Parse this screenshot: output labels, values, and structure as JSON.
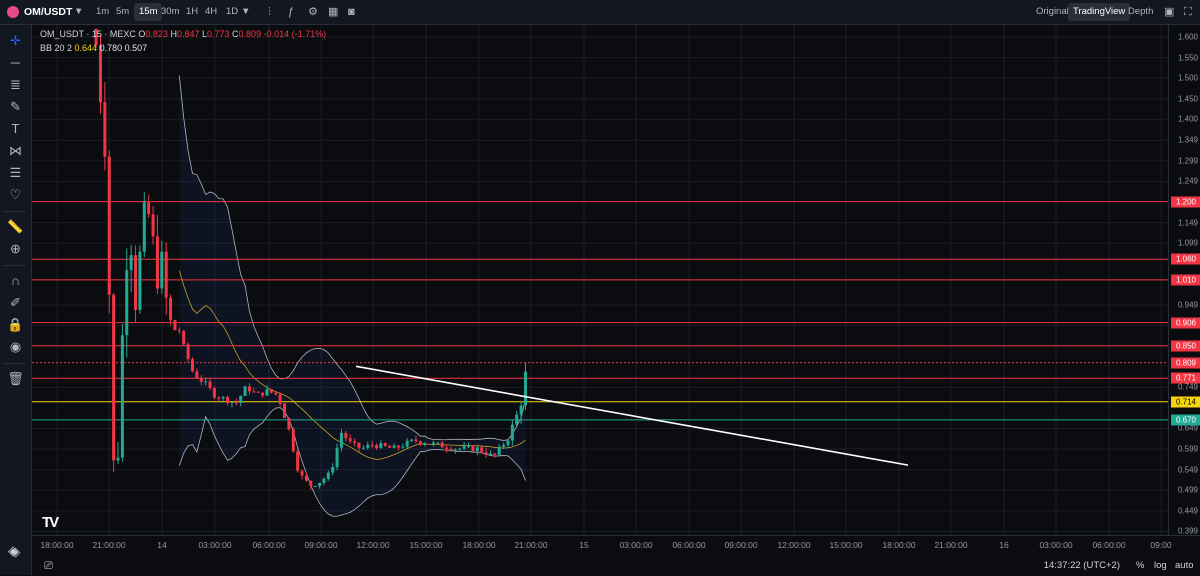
{
  "header": {
    "symbol": "OM/USDT",
    "intervals": [
      "1m",
      "5m",
      "15m",
      "30m",
      "1H",
      "4H",
      "1D"
    ],
    "active_interval": "15m",
    "views": [
      "Original",
      "TradingView",
      "Depth"
    ],
    "active_view": "TradingView"
  },
  "legend": {
    "title": "OM_USDT · 15 · MEXC",
    "o_label": "O",
    "o": "0.823",
    "h_label": "H",
    "h": "0.847",
    "l_label": "L",
    "l": "0.773",
    "c_label": "C",
    "c": "0.809",
    "change": "-0.014 (-1.71%)",
    "bb_label": "BB 20 2",
    "bb_basis": "0.644",
    "bb_upper": "0.780",
    "bb_lower": "0.507"
  },
  "price_axis": {
    "ticks": [
      "1.600",
      "1.550",
      "1.500",
      "1.450",
      "1.400",
      "1.349",
      "1.299",
      "1.249",
      "1.149",
      "1.099",
      "0.949",
      "0.899",
      "0.749",
      "0.649",
      "0.599",
      "0.549",
      "0.499",
      "0.449",
      "0.399",
      "0.349"
    ],
    "tick_values": [
      1.6,
      1.55,
      1.5,
      1.45,
      1.4,
      1.349,
      1.299,
      1.249,
      1.149,
      1.099,
      0.949,
      0.899,
      0.749,
      0.649,
      0.599,
      0.549,
      0.499,
      0.449,
      0.399,
      0.349
    ],
    "levels": [
      {
        "label": "1.200",
        "value": 1.2,
        "color": "#f23645"
      },
      {
        "label": "1.060",
        "value": 1.06,
        "color": "#f23645"
      },
      {
        "label": "1.010",
        "value": 1.01,
        "color": "#f23645"
      },
      {
        "label": "0.906",
        "value": 0.906,
        "color": "#f23645"
      },
      {
        "label": "0.850",
        "value": 0.85,
        "color": "#f23645"
      },
      {
        "label": "0.771",
        "value": 0.771,
        "color": "#f23645"
      },
      {
        "label": "0.714",
        "value": 0.714,
        "color": "#f5d60a"
      },
      {
        "label": "0.670",
        "value": 0.67,
        "color": "#22ab94"
      }
    ],
    "last_price": {
      "label": "0.809",
      "value": 0.809,
      "color": "#f23645"
    }
  },
  "time_axis": {
    "labels": [
      "18:00:00",
      "21:00:00",
      "14",
      "03:00:00",
      "06:00:00",
      "09:00:00",
      "12:00:00",
      "15:00:00",
      "18:00:00",
      "21:00:00",
      "15",
      "03:00:00",
      "06:00:00",
      "09:00:00",
      "12:00:00",
      "15:00:00",
      "18:00:00",
      "21:00:00",
      "16",
      "03:00:00",
      "06:00:00",
      "09:00"
    ]
  },
  "footer": {
    "clock": "14:37:22 (UTC+2)",
    "percent": "%",
    "log": "log",
    "auto": "auto"
  },
  "chart_data": {
    "type": "candlestick",
    "symbol": "OM_USDT",
    "interval": "15",
    "exchange": "MEXC",
    "ylim": [
      0.32,
      1.63
    ],
    "trendline": [
      {
        "x": "12:00:00",
        "y": 0.8
      },
      {
        "x": "15 Mar 15:00:00",
        "y": 0.56
      }
    ],
    "close_path_approx": [
      [
        0.66,
        1.7
      ],
      [
        0.94,
        1.3
      ],
      [
        1.02,
        0.82
      ],
      [
        1.1,
        0.45
      ],
      [
        1.18,
        0.65
      ],
      [
        1.28,
        1.0
      ],
      [
        1.38,
        1.15
      ],
      [
        1.5,
        0.95
      ],
      [
        1.6,
        1.1
      ],
      [
        1.7,
        1.2
      ],
      [
        1.8,
        1.12
      ],
      [
        1.9,
        1.02
      ],
      [
        2.0,
        1.05
      ],
      [
        2.1,
        0.93
      ],
      [
        2.2,
        0.88
      ],
      [
        2.3,
        0.9
      ],
      [
        2.4,
        0.85
      ],
      [
        2.6,
        0.78
      ],
      [
        2.8,
        0.76
      ],
      [
        3.0,
        0.73
      ],
      [
        3.2,
        0.72
      ],
      [
        3.4,
        0.71
      ],
      [
        3.6,
        0.75
      ],
      [
        3.8,
        0.73
      ],
      [
        4.0,
        0.74
      ],
      [
        4.2,
        0.73
      ],
      [
        4.4,
        0.65
      ],
      [
        4.6,
        0.54
      ],
      [
        4.8,
        0.51
      ],
      [
        5.0,
        0.52
      ],
      [
        5.2,
        0.54
      ],
      [
        5.4,
        0.64
      ],
      [
        5.6,
        0.61
      ],
      [
        5.8,
        0.6
      ],
      [
        6.0,
        0.61
      ],
      [
        6.4,
        0.6
      ],
      [
        6.8,
        0.62
      ],
      [
        7.2,
        0.61
      ],
      [
        7.6,
        0.6
      ],
      [
        8.0,
        0.6
      ],
      [
        8.3,
        0.58
      ],
      [
        8.6,
        0.63
      ],
      [
        8.8,
        0.7
      ],
      [
        8.95,
        0.81
      ]
    ]
  }
}
